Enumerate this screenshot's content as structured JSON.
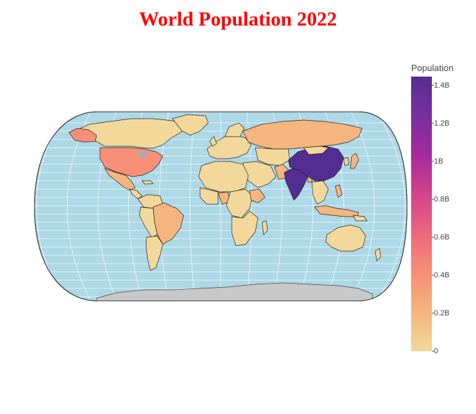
{
  "title": "World Population 2022",
  "legend": {
    "title": "Population",
    "ticks": [
      {
        "label": "1.4B",
        "value": 1.4
      },
      {
        "label": "1.2B",
        "value": 1.2
      },
      {
        "label": "1B",
        "value": 1.0
      },
      {
        "label": "0.8B",
        "value": 0.8
      },
      {
        "label": "0.6B",
        "value": 0.6
      },
      {
        "label": "0.4B",
        "value": 0.4
      },
      {
        "label": "0.2B",
        "value": 0.2
      },
      {
        "label": "0",
        "value": 0
      }
    ],
    "range": [
      0,
      1.42
    ],
    "colorscale": [
      "#f2d89b",
      "#f5b57e",
      "#f88f77",
      "#ed6a7d",
      "#d4438c",
      "#a72b9b",
      "#7b2ea1",
      "#542d91"
    ]
  },
  "map": {
    "projection": "natural earth",
    "ocean_color": "#add8e6",
    "land_unpopulated_color": "#c8c8c8",
    "highlighted_countries": [
      {
        "name": "China",
        "population_b": 1.42
      },
      {
        "name": "India",
        "population_b": 1.41
      },
      {
        "name": "United States",
        "population_b": 0.34
      },
      {
        "name": "Indonesia",
        "population_b": 0.28
      },
      {
        "name": "Pakistan",
        "population_b": 0.24
      },
      {
        "name": "Nigeria",
        "population_b": 0.22
      },
      {
        "name": "Brazil",
        "population_b": 0.22
      },
      {
        "name": "Bangladesh",
        "population_b": 0.17
      },
      {
        "name": "Russia",
        "population_b": 0.14
      },
      {
        "name": "Mexico",
        "population_b": 0.13
      },
      {
        "name": "Japan",
        "population_b": 0.12
      },
      {
        "name": "Ethiopia",
        "population_b": 0.12
      },
      {
        "name": "Philippines",
        "population_b": 0.12
      },
      {
        "name": "Egypt",
        "population_b": 0.11
      },
      {
        "name": "Australia",
        "population_b": 0.026
      },
      {
        "name": "Canada",
        "population_b": 0.039
      }
    ]
  }
}
